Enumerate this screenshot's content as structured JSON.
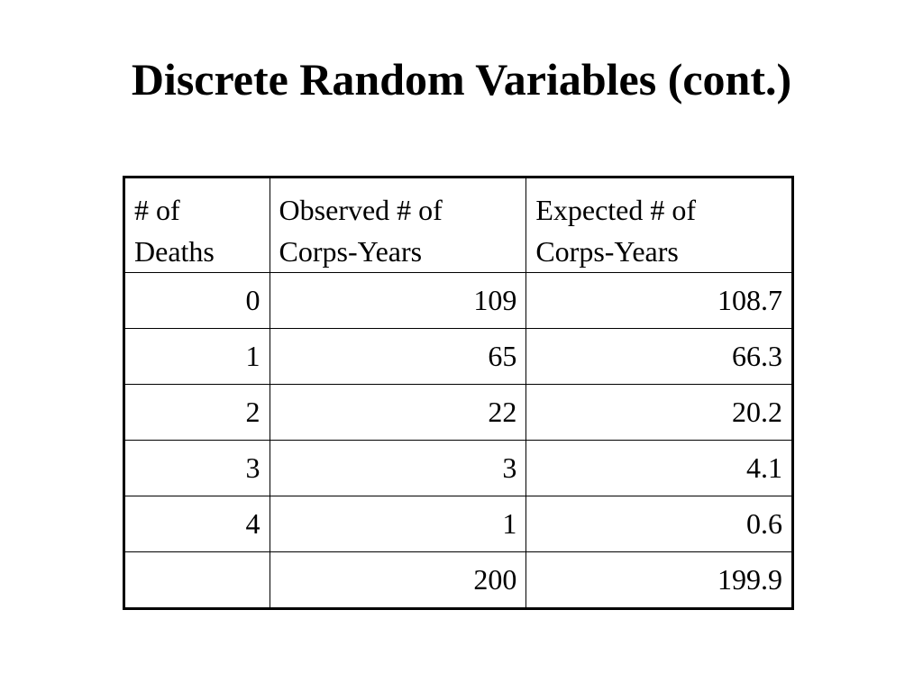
{
  "slide": {
    "title": "Discrete Random Variables (cont.)"
  },
  "table": {
    "headers": [
      {
        "line1": "# of",
        "line2": "Deaths"
      },
      {
        "line1": "Observed # of",
        "line2": "Corps-Years"
      },
      {
        "line1": "Expected # of",
        "line2": "Corps-Years"
      }
    ],
    "rows": [
      {
        "deaths": "0",
        "observed": "109",
        "expected": "108.7"
      },
      {
        "deaths": "1",
        "observed": "65",
        "expected": "66.3"
      },
      {
        "deaths": "2",
        "observed": "22",
        "expected": "20.2"
      },
      {
        "deaths": "3",
        "observed": "3",
        "expected": "4.1"
      },
      {
        "deaths": "4",
        "observed": "1",
        "expected": "0.6"
      }
    ],
    "total": {
      "deaths": "",
      "observed": "200",
      "expected": "199.9"
    }
  }
}
